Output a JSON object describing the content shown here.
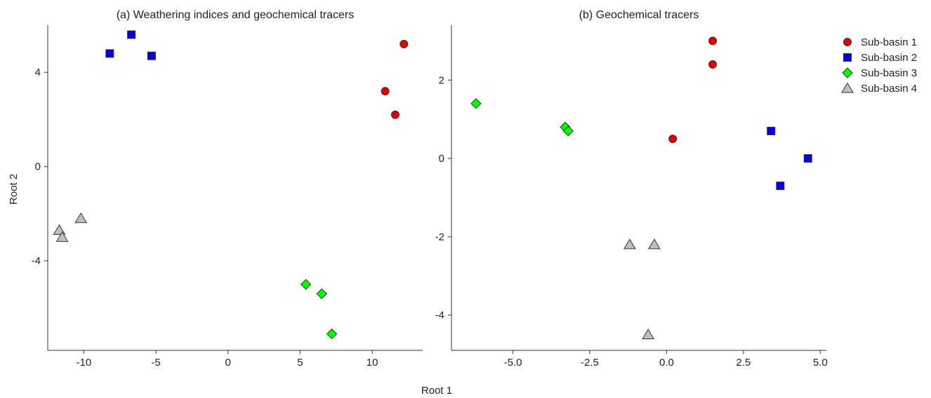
{
  "figure": {
    "shared_xlabel": "Root 1",
    "shared_ylabel": "Root 2"
  },
  "legend": {
    "items": [
      {
        "label": "Sub-basin 1",
        "marker": "circle",
        "color": "#e50000"
      },
      {
        "label": "Sub-basin 2",
        "marker": "square",
        "color": "#0000e5"
      },
      {
        "label": "Sub-basin 3",
        "marker": "diamond",
        "color": "#00ff00"
      },
      {
        "label": "Sub-basin 4",
        "marker": "triangle",
        "color": "#c0c0c0"
      }
    ]
  },
  "chart_data": [
    {
      "type": "scatter",
      "title": "(a) Weathering indices and geochemical tracers",
      "xlabel": "Root 1",
      "ylabel": "Root 2",
      "xlim": [
        -12.5,
        13.5
      ],
      "ylim": [
        -7.8,
        6.0
      ],
      "xticks": [
        -10,
        -5,
        0,
        5,
        10
      ],
      "xtick_labels": [
        "-10",
        "-5",
        "0",
        "5",
        "10"
      ],
      "yticks": [
        4,
        0,
        -4
      ],
      "ytick_labels": [
        "4",
        "0",
        "-4"
      ],
      "grid": false,
      "series": [
        {
          "name": "Sub-basin 1",
          "points": [
            [
              12.2,
              5.2
            ],
            [
              10.9,
              3.2
            ],
            [
              11.6,
              2.2
            ]
          ]
        },
        {
          "name": "Sub-basin 2",
          "points": [
            [
              -6.7,
              5.6
            ],
            [
              -8.2,
              4.8
            ],
            [
              -5.3,
              4.7
            ]
          ]
        },
        {
          "name": "Sub-basin 3",
          "points": [
            [
              5.4,
              -5.0
            ],
            [
              6.5,
              -5.4
            ],
            [
              7.2,
              -7.1
            ]
          ]
        },
        {
          "name": "Sub-basin 4",
          "points": [
            [
              -10.2,
              -2.2
            ],
            [
              -11.7,
              -2.7
            ],
            [
              -11.5,
              -3.0
            ]
          ]
        }
      ]
    },
    {
      "type": "scatter",
      "title": "(b) Geochemical tracers",
      "xlabel": "Root 1",
      "ylabel": "Root 2",
      "xlim": [
        -7.0,
        5.2
      ],
      "ylim": [
        -4.9,
        3.4
      ],
      "xticks": [
        -5.0,
        -2.5,
        0.0,
        2.5,
        5.0
      ],
      "xtick_labels": [
        "-5.0",
        "-2.5",
        "0.0",
        "2.5",
        "5.0"
      ],
      "yticks": [
        2,
        0,
        -2,
        -4
      ],
      "ytick_labels": [
        "2",
        "0",
        "-2",
        "-4"
      ],
      "grid": false,
      "series": [
        {
          "name": "Sub-basin 1",
          "points": [
            [
              1.5,
              3.0
            ],
            [
              1.5,
              2.4
            ],
            [
              0.2,
              0.5
            ]
          ]
        },
        {
          "name": "Sub-basin 2",
          "points": [
            [
              3.4,
              0.7
            ],
            [
              4.6,
              0.0
            ],
            [
              3.7,
              -0.7
            ]
          ]
        },
        {
          "name": "Sub-basin 3",
          "points": [
            [
              -6.2,
              1.4
            ],
            [
              -3.3,
              0.8
            ],
            [
              -3.2,
              0.7
            ]
          ]
        },
        {
          "name": "Sub-basin 4",
          "points": [
            [
              -1.2,
              -2.2
            ],
            [
              -0.4,
              -2.2
            ],
            [
              -0.6,
              -4.5
            ]
          ]
        }
      ]
    }
  ]
}
